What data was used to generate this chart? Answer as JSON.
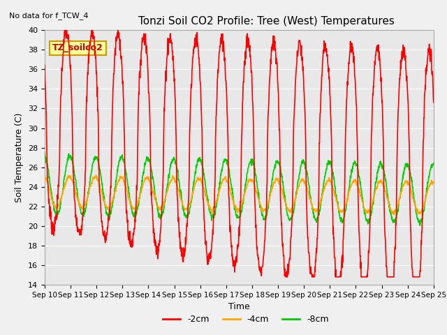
{
  "title": "Tonzi Soil CO2 Profile: Tree (West) Temperatures",
  "no_data_label": "No data for f_TCW_4",
  "legend_box_label": "TZ_soilco2",
  "ylabel": "Soil Temperature (C)",
  "xlabel": "Time",
  "ylim": [
    14,
    40
  ],
  "yticks": [
    14,
    16,
    18,
    20,
    22,
    24,
    26,
    28,
    30,
    32,
    34,
    36,
    38,
    40
  ],
  "xtick_labels": [
    "Sep 10",
    "Sep 11",
    "Sep 12",
    "Sep 13",
    "Sep 14",
    "Sep 15",
    "Sep 16",
    "Sep 17",
    "Sep 18",
    "Sep 19",
    "Sep 20",
    "Sep 21",
    "Sep 22",
    "Sep 23",
    "Sep 24",
    "Sep 25"
  ],
  "line_colors": {
    "m2cm": "#ff0000",
    "m4cm": "#ffa500",
    "m8cm": "#00cc00"
  },
  "legend_labels": [
    "-2cm",
    "-4cm",
    "-8cm"
  ],
  "fig_bg_color": "#f0f0f0",
  "plot_bg_color": "#e8e8e8",
  "legend_box_bg": "#ffff99",
  "legend_box_border": "#cc9900",
  "grid_color": "#ffffff"
}
